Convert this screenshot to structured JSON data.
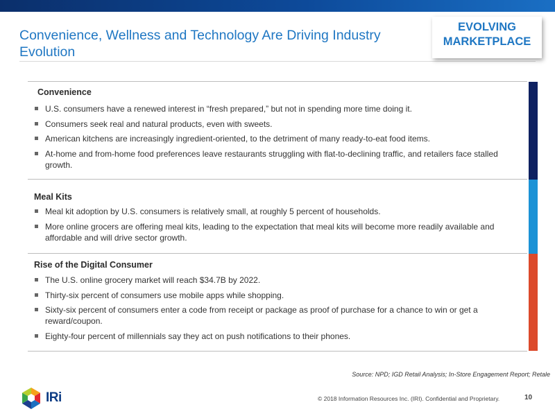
{
  "header": {
    "title": "Convenience, Wellness and Technology Are Driving Industry Evolution",
    "badge_line1": "EVOLVING",
    "badge_line2": "MARKETPLACE"
  },
  "sections": [
    {
      "title": "Convenience",
      "accent": "#0e2161",
      "bullets": [
        "U.S. consumers have a renewed interest in “fresh prepared,” but not in spending more time doing it.",
        "Consumers seek real and natural products, even with sweets.",
        "American kitchens are increasingly ingredient-oriented, to the detriment of many ready-to-eat food items.",
        "At-home and from-home food preferences leave restaurants struggling with flat-to-declining traffic, and retailers face stalled growth."
      ]
    },
    {
      "title": "Meal Kits",
      "accent": "#1b92d6",
      "bullets": [
        "Meal kit adoption by U.S. consumers is relatively small, at roughly 5 percent of households.",
        "More online grocers are offering meal kits, leading to the expectation that meal kits will become more readily available and affordable and will drive sector growth."
      ]
    },
    {
      "title": "Rise of the Digital Consumer",
      "accent": "#dc4a2b",
      "bullets": [
        "The U.S. online grocery market will reach $34.7B by 2022.",
        "Thirty-six percent of consumers use mobile apps while shopping.",
        "Sixty-six percent of consumers enter a code from receipt or package as proof of purchase for a chance to win or get a reward/coupon.",
        "Eighty-four percent of millennials say they act on push notifications to their phones."
      ]
    }
  ],
  "footer": {
    "source": "Source: NPD; IGD Retail Analysis; In-Store Engagement Report; Retale",
    "logo_text": "IRi",
    "copyright": "© 2018 Information Resources Inc. (IRI). Confidential and Proprietary.",
    "page_number": "10"
  }
}
